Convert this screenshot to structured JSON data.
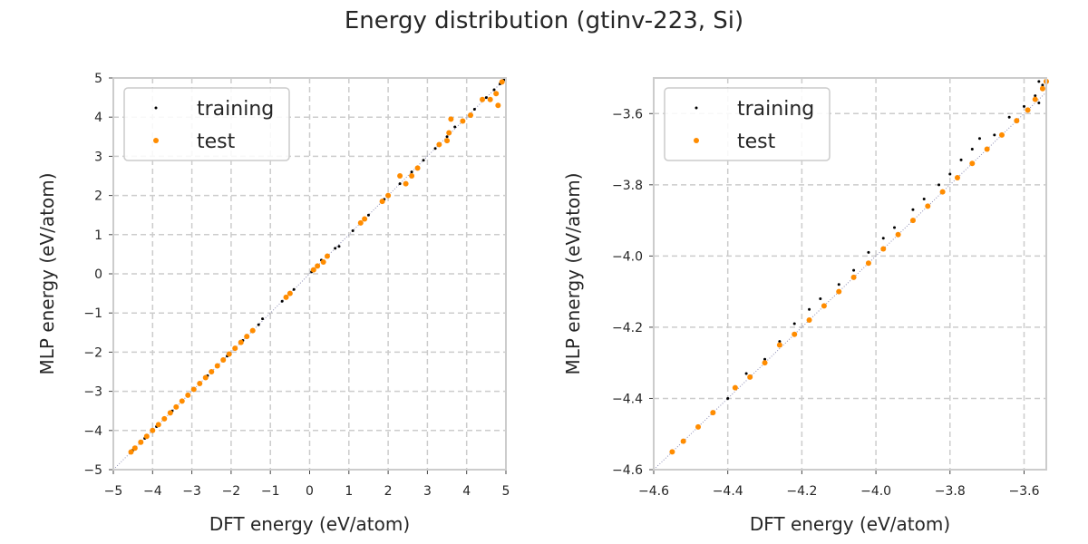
{
  "title": "Energy distribution (gtinv-223, Si)",
  "colors": {
    "training": "#000000",
    "test": "#ff8c00",
    "diagonal": "#8c8cb4",
    "grid": "#cccccc",
    "frame": "#cccccc"
  },
  "chart_data": [
    {
      "type": "scatter",
      "xlabel": "DFT energy (eV/atom)",
      "ylabel": "MLP energy (eV/atom)",
      "xlim": [
        -5,
        5
      ],
      "ylim": [
        -5,
        5
      ],
      "xticks": [
        "−5",
        "−4",
        "−3",
        "−2",
        "−1",
        "0",
        "1",
        "2",
        "3",
        "4",
        "5"
      ],
      "yticks": [
        "−5",
        "−4",
        "−3",
        "−2",
        "−1",
        "0",
        "1",
        "2",
        "3",
        "4",
        "5"
      ],
      "xtick_values": [
        -5,
        -4,
        -3,
        -2,
        -1,
        0,
        1,
        2,
        3,
        4,
        5
      ],
      "ytick_values": [
        -5,
        -4,
        -3,
        -2,
        -1,
        0,
        1,
        2,
        3,
        4,
        5
      ],
      "grid": true,
      "legend": "top-left",
      "series": [
        {
          "name": "training",
          "points": [
            [
              -4.5,
              -4.5
            ],
            [
              -4.2,
              -4.2
            ],
            [
              -3.9,
              -3.9
            ],
            [
              -3.5,
              -3.5
            ],
            [
              -3.1,
              -3.1
            ],
            [
              -2.6,
              -2.6
            ],
            [
              -2.1,
              -2.1
            ],
            [
              -1.7,
              -1.7
            ],
            [
              -1.3,
              -1.3
            ],
            [
              -1.2,
              -1.15
            ],
            [
              -0.7,
              -0.7
            ],
            [
              -0.4,
              -0.4
            ],
            [
              0.05,
              0.05
            ],
            [
              0.3,
              0.35
            ],
            [
              0.65,
              0.65
            ],
            [
              0.75,
              0.7
            ],
            [
              1.1,
              1.1
            ],
            [
              1.5,
              1.5
            ],
            [
              1.9,
              1.9
            ],
            [
              2.3,
              2.3
            ],
            [
              2.6,
              2.6
            ],
            [
              2.9,
              2.9
            ],
            [
              3.2,
              3.2
            ],
            [
              3.5,
              3.5
            ],
            [
              3.7,
              3.75
            ],
            [
              3.9,
              3.9
            ],
            [
              4.2,
              4.2
            ],
            [
              4.5,
              4.5
            ],
            [
              4.7,
              4.7
            ],
            [
              4.85,
              4.85
            ],
            [
              4.95,
              4.95
            ]
          ]
        },
        {
          "name": "test",
          "points": [
            [
              -4.55,
              -4.55
            ],
            [
              -4.45,
              -4.45
            ],
            [
              -4.3,
              -4.3
            ],
            [
              -4.15,
              -4.15
            ],
            [
              -4.0,
              -4.0
            ],
            [
              -3.85,
              -3.85
            ],
            [
              -3.7,
              -3.7
            ],
            [
              -3.55,
              -3.55
            ],
            [
              -3.4,
              -3.4
            ],
            [
              -3.25,
              -3.25
            ],
            [
              -3.1,
              -3.1
            ],
            [
              -2.95,
              -2.95
            ],
            [
              -2.8,
              -2.8
            ],
            [
              -2.65,
              -2.65
            ],
            [
              -2.5,
              -2.5
            ],
            [
              -2.35,
              -2.35
            ],
            [
              -2.2,
              -2.2
            ],
            [
              -2.05,
              -2.05
            ],
            [
              -1.9,
              -1.9
            ],
            [
              -1.75,
              -1.75
            ],
            [
              -1.6,
              -1.6
            ],
            [
              -1.45,
              -1.45
            ],
            [
              -0.6,
              -0.6
            ],
            [
              -0.5,
              -0.5
            ],
            [
              0.1,
              0.1
            ],
            [
              0.2,
              0.2
            ],
            [
              0.35,
              0.3
            ],
            [
              0.45,
              0.45
            ],
            [
              1.3,
              1.3
            ],
            [
              1.4,
              1.4
            ],
            [
              1.85,
              1.85
            ],
            [
              2.0,
              2.0
            ],
            [
              2.3,
              2.5
            ],
            [
              2.45,
              2.3
            ],
            [
              2.6,
              2.5
            ],
            [
              2.75,
              2.7
            ],
            [
              3.3,
              3.3
            ],
            [
              3.5,
              3.4
            ],
            [
              3.55,
              3.6
            ],
            [
              3.6,
              3.95
            ],
            [
              3.9,
              3.9
            ],
            [
              4.1,
              4.05
            ],
            [
              4.4,
              4.45
            ],
            [
              4.6,
              4.45
            ],
            [
              4.8,
              4.3
            ],
            [
              4.75,
              4.6
            ],
            [
              4.9,
              4.9
            ]
          ]
        }
      ]
    },
    {
      "type": "scatter",
      "xlabel": "DFT energy (eV/atom)",
      "ylabel": "MLP energy (eV/atom)",
      "xlim": [
        -4.6,
        -3.54
      ],
      "ylim": [
        -4.6,
        -3.5
      ],
      "xticks": [
        "−4.6",
        "−4.4",
        "−4.2",
        "−4.0",
        "−3.8",
        "−3.6"
      ],
      "yticks": [
        "−4.6",
        "−4.4",
        "−4.2",
        "−4.0",
        "−3.8",
        "−3.6"
      ],
      "xtick_values": [
        -4.6,
        -4.4,
        -4.2,
        -4.0,
        -3.8,
        -3.6
      ],
      "ytick_values": [
        -4.6,
        -4.4,
        -4.2,
        -4.0,
        -3.8,
        -3.6
      ],
      "grid": true,
      "legend": "top-left",
      "series": [
        {
          "name": "training",
          "points": [
            [
              -4.4,
              -4.4
            ],
            [
              -4.35,
              -4.33
            ],
            [
              -4.3,
              -4.29
            ],
            [
              -4.26,
              -4.24
            ],
            [
              -4.22,
              -4.19
            ],
            [
              -4.18,
              -4.15
            ],
            [
              -4.15,
              -4.12
            ],
            [
              -4.1,
              -4.08
            ],
            [
              -4.06,
              -4.04
            ],
            [
              -4.02,
              -3.99
            ],
            [
              -3.98,
              -3.95
            ],
            [
              -3.95,
              -3.92
            ],
            [
              -3.9,
              -3.87
            ],
            [
              -3.87,
              -3.84
            ],
            [
              -3.83,
              -3.8
            ],
            [
              -3.8,
              -3.77
            ],
            [
              -3.77,
              -3.73
            ],
            [
              -3.74,
              -3.7
            ],
            [
              -3.72,
              -3.67
            ],
            [
              -3.68,
              -3.66
            ],
            [
              -3.64,
              -3.61
            ],
            [
              -3.6,
              -3.58
            ],
            [
              -3.57,
              -3.55
            ],
            [
              -3.56,
              -3.57
            ],
            [
              -3.55,
              -3.52
            ],
            [
              -3.56,
              -3.51
            ]
          ]
        },
        {
          "name": "test",
          "points": [
            [
              -4.55,
              -4.55
            ],
            [
              -4.52,
              -4.52
            ],
            [
              -4.48,
              -4.48
            ],
            [
              -4.44,
              -4.44
            ],
            [
              -4.38,
              -4.37
            ],
            [
              -4.34,
              -4.34
            ],
            [
              -4.3,
              -4.3
            ],
            [
              -4.26,
              -4.25
            ],
            [
              -4.22,
              -4.22
            ],
            [
              -4.18,
              -4.18
            ],
            [
              -4.14,
              -4.14
            ],
            [
              -4.1,
              -4.1
            ],
            [
              -4.06,
              -4.06
            ],
            [
              -4.02,
              -4.02
            ],
            [
              -3.98,
              -3.98
            ],
            [
              -3.94,
              -3.94
            ],
            [
              -3.9,
              -3.9
            ],
            [
              -3.86,
              -3.86
            ],
            [
              -3.82,
              -3.82
            ],
            [
              -3.78,
              -3.78
            ],
            [
              -3.74,
              -3.74
            ],
            [
              -3.7,
              -3.7
            ],
            [
              -3.66,
              -3.66
            ],
            [
              -3.62,
              -3.62
            ],
            [
              -3.59,
              -3.59
            ],
            [
              -3.57,
              -3.56
            ],
            [
              -3.55,
              -3.53
            ],
            [
              -3.54,
              -3.51
            ]
          ]
        }
      ]
    }
  ]
}
